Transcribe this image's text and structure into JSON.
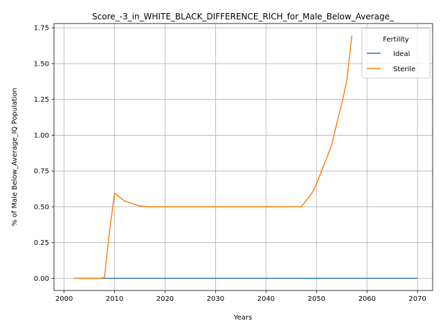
{
  "chart_data": {
    "type": "line",
    "title": "Score_-3_in_WHITE_BLACK_DIFFERENCE_RICH_for_Male_Below_Average_",
    "xlabel": "Years",
    "ylabel": "% of Male Below_Average_IQ Population",
    "xlim": [
      1998,
      2073
    ],
    "ylim": [
      -0.085,
      1.78
    ],
    "xticks": [
      2000,
      2010,
      2020,
      2030,
      2040,
      2050,
      2060,
      2070
    ],
    "yticks": [
      0.0,
      0.25,
      0.5,
      0.75,
      1.0,
      1.25,
      1.5,
      1.75
    ],
    "xtick_labels": [
      "2000",
      "2010",
      "2020",
      "2030",
      "2040",
      "2050",
      "2060",
      "2070"
    ],
    "ytick_labels": [
      "0.00",
      "0.25",
      "0.50",
      "0.75",
      "1.00",
      "1.25",
      "1.50",
      "1.75"
    ],
    "grid": true,
    "legend": {
      "title": "Fertility",
      "placement": "top-right"
    },
    "series": [
      {
        "name": "Ideal",
        "color": "#1f77b4",
        "x": [
          2002,
          2070
        ],
        "y": [
          0.0,
          0.0
        ]
      },
      {
        "name": "Sterile",
        "color": "#ff7f0e",
        "x": [
          2002,
          2007,
          2008,
          2009,
          2010,
          2012,
          2015,
          2017,
          2020,
          2030,
          2040,
          2047,
          2049,
          2050,
          2051,
          2052,
          2053,
          2054,
          2055,
          2056,
          2057
        ],
        "y": [
          0.0,
          0.0,
          0.005,
          0.33,
          0.595,
          0.54,
          0.505,
          0.5,
          0.5,
          0.5,
          0.5,
          0.5,
          0.59,
          0.66,
          0.75,
          0.84,
          0.93,
          1.08,
          1.22,
          1.38,
          1.695
        ]
      }
    ]
  }
}
